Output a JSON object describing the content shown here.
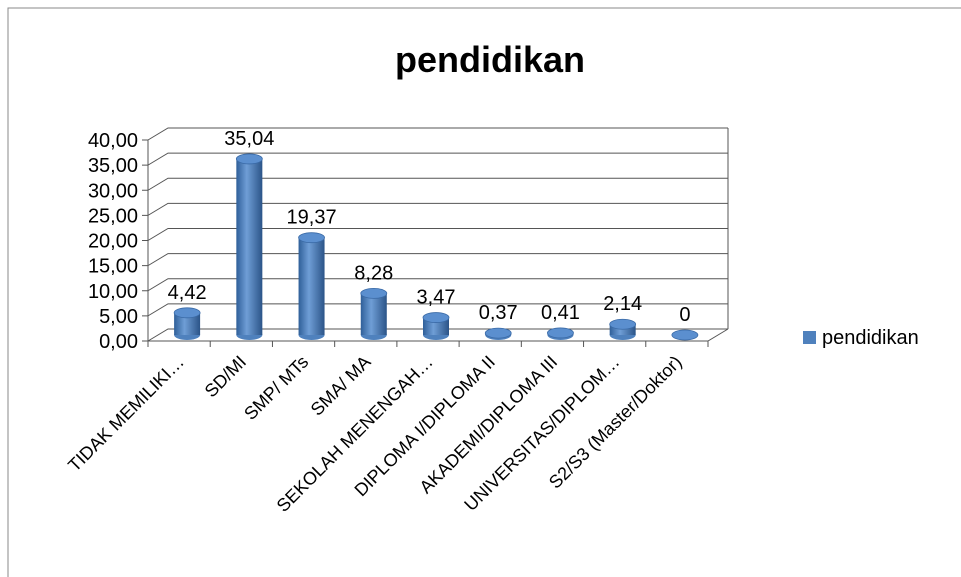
{
  "chart_data": {
    "type": "bar",
    "title": "pendidikan",
    "categories": [
      "TIDAK MEMILIKI…",
      "SD/MI",
      "SMP/ MTs",
      "SMA/ MA",
      "SEKOLAH MENENGAH…",
      "DIPLOMA I/DIPLOMA II",
      "AKADEMI/DIPLOMA III",
      "UNIVERSITAS/DIPLOM…",
      "S2/S3 (Master/Doktor)"
    ],
    "series": [
      {
        "name": "pendidikan",
        "color": "#4f81bd",
        "values": [
          4.42,
          35.04,
          19.37,
          8.28,
          3.47,
          0.37,
          0.41,
          2.14,
          0
        ],
        "value_labels": [
          "4,42",
          "35,04",
          "19,37",
          "8,28",
          "3,47",
          "0,37",
          "0,41",
          "2,14",
          "0"
        ]
      }
    ],
    "ylim": [
      0,
      40
    ],
    "yticks": [
      {
        "value": 0,
        "label": "0,00"
      },
      {
        "value": 5,
        "label": "5,00"
      },
      {
        "value": 10,
        "label": "10,00"
      },
      {
        "value": 15,
        "label": "15,00"
      },
      {
        "value": 20,
        "label": "20,00"
      },
      {
        "value": 25,
        "label": "25,00"
      },
      {
        "value": 30,
        "label": "30,00"
      },
      {
        "value": 35,
        "label": "35,00"
      },
      {
        "value": 40,
        "label": "40,00"
      }
    ],
    "grid": true,
    "legend": "right"
  }
}
